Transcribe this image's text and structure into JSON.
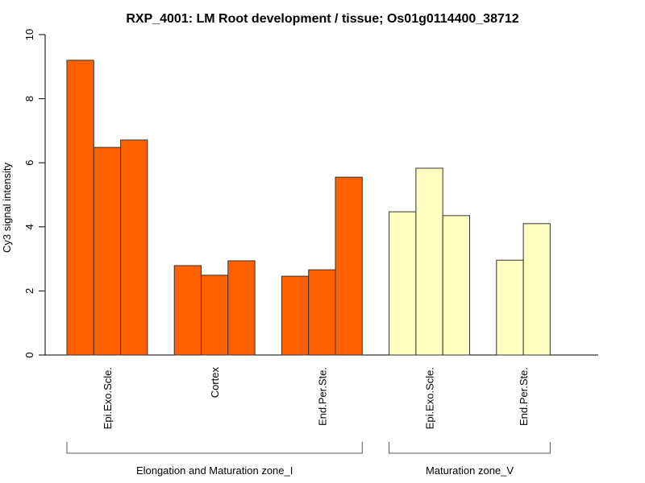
{
  "chart_data": {
    "type": "bar",
    "title": "RXP_4001: LM Root development / tissue; Os01g0114400_38712",
    "xlabel": "",
    "ylabel": "Cy3 signal intensity",
    "ylim": [
      0,
      10
    ],
    "yticks": [
      "0",
      "2",
      "4",
      "6",
      "8",
      "10"
    ],
    "grid": false,
    "groups": [
      {
        "label": "Elongation and Maturation zone_I",
        "color": "#ff6000",
        "categories": [
          {
            "label": "Epi.Exo.Scle.",
            "values": [
              9.2,
              6.48,
              6.71
            ]
          },
          {
            "label": "Cortex",
            "values": [
              2.79,
              2.49,
              2.94
            ]
          },
          {
            "label": "End.Per.Ste.",
            "values": [
              2.46,
              2.66,
              5.55
            ]
          }
        ]
      },
      {
        "label": "Maturation zone_V",
        "color": "#ffffc0",
        "categories": [
          {
            "label": "Epi.Exo.Scle.",
            "values": [
              4.47,
              5.83,
              4.35
            ]
          },
          {
            "label": "End.Per.Ste.",
            "values": [
              2.96,
              4.1
            ]
          }
        ]
      }
    ]
  }
}
